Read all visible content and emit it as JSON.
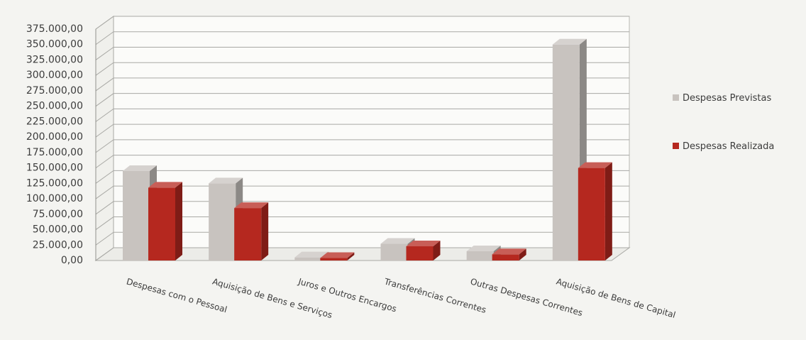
{
  "chart_data": {
    "type": "bar",
    "title": "",
    "xlabel": "",
    "ylabel": "",
    "ylim": [
      0,
      375000
    ],
    "grid": true,
    "legend_position": "right",
    "y_tick_labels": [
      "0,00",
      "25.000,00",
      "50.000,00",
      "75.000,00",
      "100.000,00",
      "125.000,00",
      "150.000,00",
      "175.000,00",
      "200.000,00",
      "225.000,00",
      "250.000,00",
      "275.000,00",
      "300.000,00",
      "325.000,00",
      "350.000,00",
      "375.000,00"
    ],
    "categories": [
      "Despesas com o Pessoal",
      "Aquisição de Bens e Serviços",
      "Juros e Outros Encargos",
      "Transferências Correntes",
      "Outras Despesas Correntes",
      "Aquisição de Bens de Capital"
    ],
    "series": [
      {
        "name": "Despesas Previstas",
        "color": "#c8c3bf",
        "values": [
          145000,
          125000,
          5000,
          27000,
          15000,
          350000
        ]
      },
      {
        "name": "Despesas Realizada",
        "color": "#b5281f",
        "values": [
          118000,
          85000,
          4000,
          23000,
          10000,
          150000
        ]
      }
    ]
  }
}
